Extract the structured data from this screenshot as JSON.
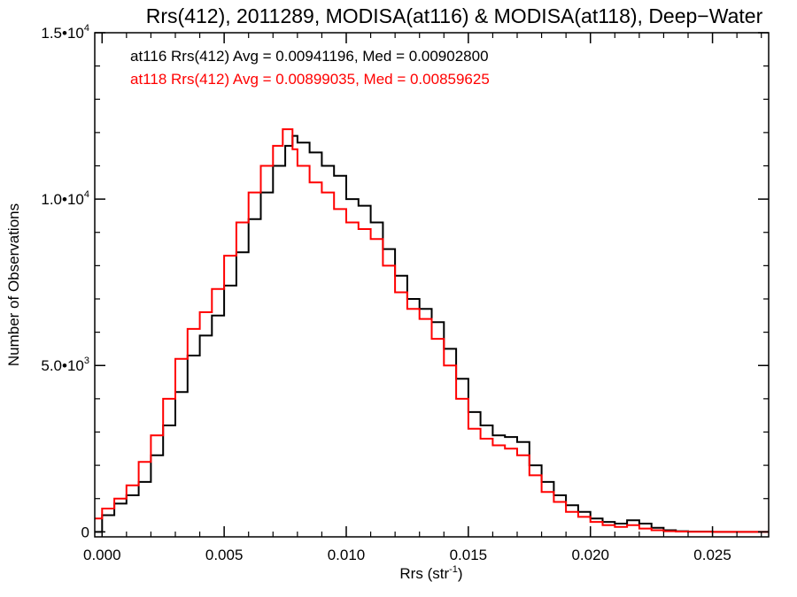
{
  "chart_data": {
    "type": "line",
    "step": true,
    "title": "Rrs(412), 2011289, MODISA(at116) & MODISA(at118), Deep−Water",
    "xlabel": "Rrs (str",
    "xlabel_sup": "-1",
    "xlabel_close": ")",
    "ylabel": "Number of Observations",
    "xlim": [
      -0.0003,
      0.0273
    ],
    "ylim": [
      -150,
      15000
    ],
    "x_ticks": [
      {
        "value": 0.0,
        "label": "0.000"
      },
      {
        "value": 0.005,
        "label": "0.005"
      },
      {
        "value": 0.01,
        "label": "0.010"
      },
      {
        "value": 0.015,
        "label": "0.015"
      },
      {
        "value": 0.02,
        "label": "0.020"
      },
      {
        "value": 0.025,
        "label": "0.025"
      }
    ],
    "y_ticks": [
      {
        "value": 0,
        "mant": "0",
        "exp": ""
      },
      {
        "value": 5000,
        "mant": "5.0•10",
        "exp": "3"
      },
      {
        "value": 10000,
        "mant": "1.0•10",
        "exp": "4"
      },
      {
        "value": 15000,
        "mant": "1.5•10",
        "exp": "4"
      }
    ],
    "x_minor_step": 0.001,
    "y_minor_step": 1000,
    "annotations": [
      {
        "text": "at116 Rrs(412) Avg = 0.00941196, Med = 0.00902800",
        "color": "#000000"
      },
      {
        "text": "at118 Rrs(412) Avg = 0.00899035, Med = 0.00859625",
        "color": "#ff0000"
      }
    ],
    "series": [
      {
        "color": "#000000",
        "x": [
          -0.0003,
          0.0,
          0.0005,
          0.001,
          0.0015,
          0.002,
          0.0025,
          0.003,
          0.0035,
          0.004,
          0.0045,
          0.005,
          0.0055,
          0.006,
          0.0065,
          0.007,
          0.0075,
          0.0078,
          0.008,
          0.0085,
          0.009,
          0.0095,
          0.01,
          0.0105,
          0.011,
          0.0115,
          0.012,
          0.0125,
          0.013,
          0.0135,
          0.014,
          0.0145,
          0.015,
          0.0155,
          0.016,
          0.0165,
          0.017,
          0.0175,
          0.018,
          0.0185,
          0.019,
          0.0195,
          0.02,
          0.0205,
          0.021,
          0.0215,
          0.022,
          0.0225,
          0.023,
          0.0235,
          0.024,
          0.025,
          0.026,
          0.0273
        ],
        "y": [
          0,
          500,
          850,
          1100,
          1500,
          2300,
          3200,
          4200,
          5300,
          5900,
          6500,
          7400,
          8400,
          9400,
          10200,
          11000,
          11600,
          11900,
          11700,
          11400,
          11000,
          10700,
          10000,
          9800,
          9300,
          8500,
          7700,
          7000,
          6700,
          6300,
          5500,
          4600,
          3600,
          3200,
          2900,
          2850,
          2700,
          2000,
          1500,
          1100,
          800,
          600,
          400,
          300,
          250,
          350,
          250,
          120,
          50,
          20,
          10,
          0,
          0,
          0
        ]
      },
      {
        "color": "#ff0000",
        "x": [
          -0.0003,
          0.0,
          0.0005,
          0.001,
          0.0015,
          0.002,
          0.0025,
          0.003,
          0.0035,
          0.004,
          0.0045,
          0.005,
          0.0055,
          0.006,
          0.0065,
          0.007,
          0.0074,
          0.0078,
          0.008,
          0.0085,
          0.009,
          0.0095,
          0.01,
          0.0105,
          0.011,
          0.0115,
          0.012,
          0.0125,
          0.013,
          0.0135,
          0.014,
          0.0145,
          0.015,
          0.0155,
          0.016,
          0.0165,
          0.017,
          0.0175,
          0.018,
          0.0185,
          0.019,
          0.0195,
          0.02,
          0.0205,
          0.021,
          0.0215,
          0.022,
          0.0225,
          0.023,
          0.0235,
          0.024,
          0.025,
          0.026,
          0.0273
        ],
        "y": [
          400,
          700,
          1000,
          1400,
          2100,
          2900,
          4000,
          5200,
          6100,
          6600,
          7300,
          8300,
          9300,
          10200,
          11000,
          11600,
          12100,
          11500,
          11000,
          10500,
          10200,
          9700,
          9300,
          9100,
          8800,
          8000,
          7200,
          6700,
          6400,
          5800,
          5000,
          4000,
          3100,
          2800,
          2600,
          2500,
          2300,
          1700,
          1200,
          900,
          600,
          450,
          300,
          200,
          150,
          200,
          100,
          50,
          20,
          10,
          5,
          0,
          0,
          0
        ]
      }
    ]
  }
}
